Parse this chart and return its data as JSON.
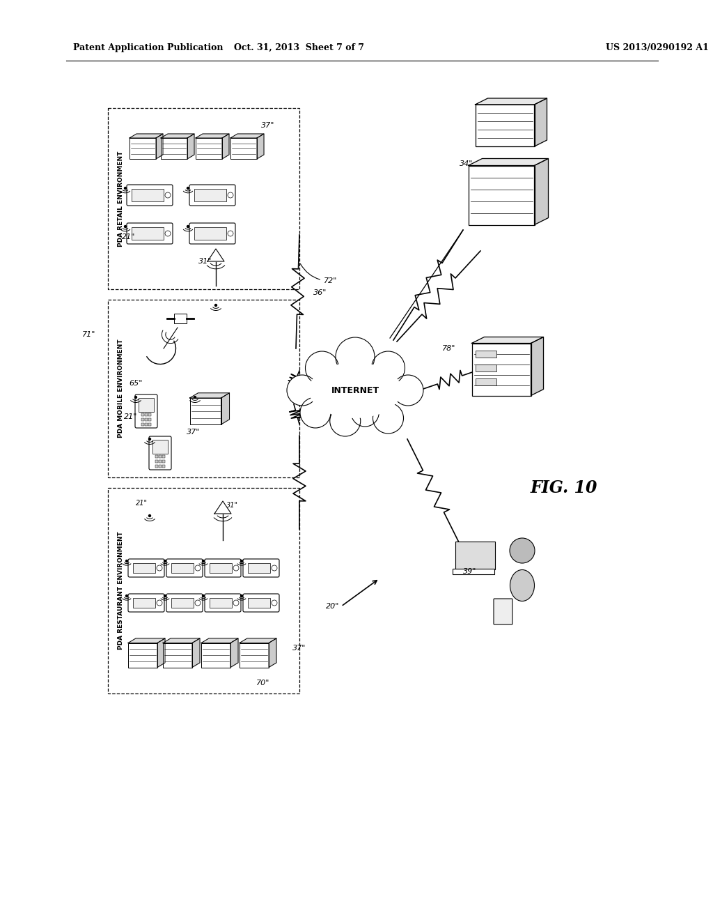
{
  "bg_color": "#ffffff",
  "header_left": "Patent Application Publication",
  "header_center": "Oct. 31, 2013  Sheet 7 of 7",
  "header_right": "US 2013/0290192 A1",
  "fig_label": "FIG. 10"
}
